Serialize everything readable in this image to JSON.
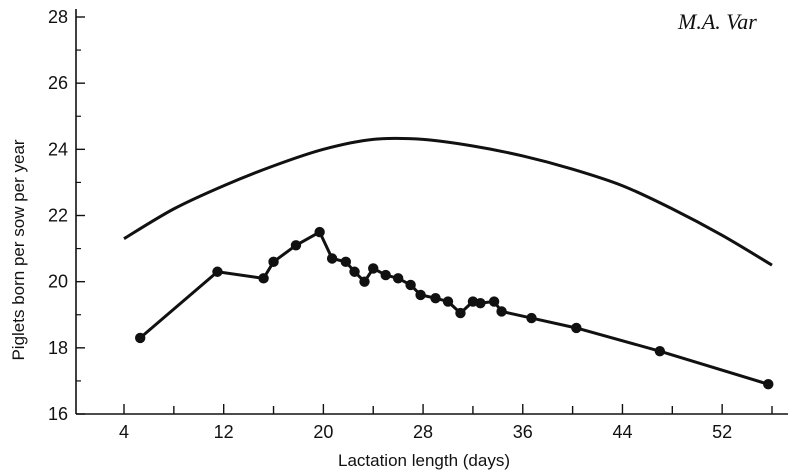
{
  "header": {
    "corner_text": "M.A. Var"
  },
  "chart_data": {
    "type": "line",
    "title": "",
    "xlabel": "Lactation length (days)",
    "ylabel": "Piglets born per sow per year",
    "xlim": [
      2,
      57
    ],
    "ylim": [
      16,
      28
    ],
    "xticks": [
      4,
      12,
      20,
      28,
      36,
      44,
      52
    ],
    "yticks": [
      16,
      18,
      20,
      22,
      24,
      26,
      28
    ],
    "grid": false,
    "series": [
      {
        "marker": "none",
        "x": [
          4,
          8,
          12,
          16,
          20,
          24,
          28,
          32,
          36,
          40,
          44,
          48,
          52,
          56
        ],
        "y": [
          21.3,
          22.2,
          22.9,
          23.5,
          24.0,
          24.3,
          24.3,
          24.1,
          23.8,
          23.4,
          22.9,
          22.2,
          21.4,
          20.5
        ]
      },
      {
        "marker": "circle",
        "x": [
          5.3,
          11.5,
          15.2,
          16.0,
          17.8,
          19.7,
          20.7,
          21.8,
          22.5,
          23.3,
          24.0,
          25.0,
          26.0,
          27.0,
          27.8,
          29.0,
          30.0,
          31.0,
          32.0,
          32.6,
          33.7,
          34.3,
          36.7,
          40.3,
          47.0,
          55.7
        ],
        "y": [
          18.3,
          20.3,
          20.1,
          20.6,
          21.1,
          21.5,
          20.7,
          20.6,
          20.3,
          20.0,
          20.4,
          20.2,
          20.1,
          19.9,
          19.6,
          19.5,
          19.4,
          19.05,
          19.4,
          19.35,
          19.4,
          19.1,
          18.9,
          18.6,
          17.9,
          16.9
        ]
      }
    ]
  }
}
